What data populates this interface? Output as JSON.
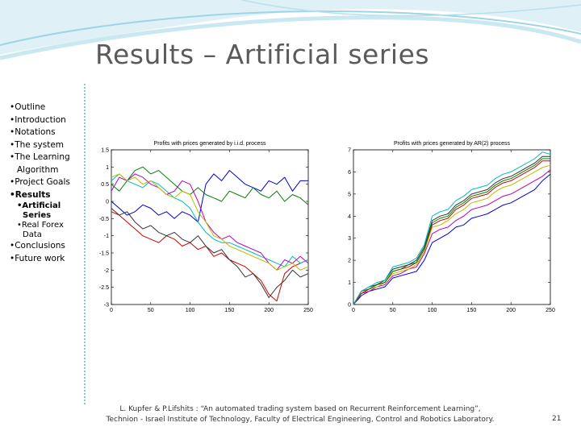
{
  "slide": {
    "title": "Results – Artificial series",
    "page_number": "21",
    "footer_line1": "L. Kupfer & P.Lifshits : “An automated trading system based on Recurrent Reinforcement Learning”,",
    "footer_line2": "Technion - Israel Institute of Technology, Faculty of Electrical Engineering, Control and Robotics Laboratory."
  },
  "sidebar": {
    "items": [
      {
        "label": "•Outline"
      },
      {
        "label": "•Introduction"
      },
      {
        "label": "•Notations"
      },
      {
        "label": "•The system"
      },
      {
        "label": "•The Learning",
        "cont": "Algorithm"
      },
      {
        "label": "•Project Goals"
      },
      {
        "label": "•Results",
        "bold": true
      },
      {
        "label": "•Artificial",
        "cont": "Series",
        "sub": true,
        "bold": true
      },
      {
        "label": "•Real Forex",
        "cont": "Data",
        "sub": true
      },
      {
        "label": "•Conclusions"
      },
      {
        "label": "•Future work"
      }
    ]
  },
  "colors": {
    "title": "#5a5a5a",
    "divider": "#7ec8dd",
    "series": [
      "#0000cc",
      "#008000",
      "#cc0000",
      "#00bbbb",
      "#bb00bb",
      "#bbbb00",
      "#333333"
    ]
  },
  "chart_data": [
    {
      "type": "line",
      "title": "Profits with prices generated by i.i.d. process",
      "xlim": [
        0,
        250
      ],
      "ylim": [
        -3,
        1.5
      ],
      "xticks": [
        0,
        50,
        100,
        150,
        200,
        250
      ],
      "yticks": [
        -3,
        -2.5,
        -2,
        -1.5,
        -1,
        -0.5,
        0,
        0.5,
        1,
        1.5
      ],
      "series": [
        {
          "color": "#0000cc",
          "x": [
            0,
            10,
            20,
            30,
            40,
            50,
            60,
            70,
            80,
            90,
            100,
            110,
            120,
            130,
            140,
            150,
            160,
            170,
            180,
            190,
            200,
            210,
            220,
            230,
            240,
            250
          ],
          "y": [
            0.0,
            -0.2,
            -0.4,
            -0.3,
            -0.1,
            -0.2,
            -0.4,
            -0.3,
            -0.5,
            -0.3,
            -0.4,
            -0.6,
            0.5,
            0.8,
            0.6,
            0.9,
            0.7,
            0.5,
            0.4,
            0.3,
            0.6,
            0.5,
            0.7,
            0.3,
            0.6,
            0.6
          ]
        },
        {
          "color": "#008000",
          "x": [
            0,
            10,
            20,
            30,
            40,
            50,
            60,
            70,
            80,
            90,
            100,
            110,
            120,
            130,
            140,
            150,
            160,
            170,
            180,
            190,
            200,
            210,
            220,
            230,
            240,
            250
          ],
          "y": [
            0.5,
            0.3,
            0.6,
            0.9,
            1.0,
            0.8,
            0.9,
            0.7,
            0.5,
            0.3,
            0.2,
            0.4,
            0.2,
            0.1,
            0.0,
            0.3,
            0.2,
            0.1,
            0.4,
            0.2,
            0.1,
            0.3,
            0.0,
            0.2,
            0.1,
            -0.1
          ]
        },
        {
          "color": "#cc0000",
          "x": [
            0,
            10,
            20,
            30,
            40,
            50,
            60,
            70,
            80,
            90,
            100,
            110,
            120,
            130,
            140,
            150,
            160,
            170,
            180,
            190,
            200,
            210,
            220,
            230,
            240,
            250
          ],
          "y": [
            -0.3,
            -0.4,
            -0.6,
            -0.8,
            -1.0,
            -1.1,
            -1.2,
            -1.0,
            -1.1,
            -1.3,
            -1.2,
            -1.4,
            -1.3,
            -1.6,
            -1.5,
            -1.7,
            -1.8,
            -1.9,
            -2.1,
            -2.3,
            -2.7,
            -2.9,
            -2.1,
            -1.9,
            -1.8,
            -1.7
          ]
        },
        {
          "color": "#00bbbb",
          "x": [
            0,
            10,
            20,
            30,
            40,
            50,
            60,
            70,
            80,
            90,
            100,
            110,
            120,
            130,
            140,
            150,
            160,
            170,
            180,
            190,
            200,
            210,
            220,
            230,
            240,
            250
          ],
          "y": [
            0.6,
            0.8,
            0.6,
            0.5,
            0.4,
            0.6,
            0.5,
            0.3,
            0.1,
            0.0,
            -0.2,
            -0.6,
            -0.9,
            -1.1,
            -1.2,
            -1.2,
            -1.3,
            -1.4,
            -1.5,
            -1.6,
            -1.7,
            -1.8,
            -1.9,
            -1.6,
            -1.8,
            -1.7
          ]
        },
        {
          "color": "#bb00bb",
          "x": [
            0,
            10,
            20,
            30,
            40,
            50,
            60,
            70,
            80,
            90,
            100,
            110,
            120,
            130,
            140,
            150,
            160,
            170,
            180,
            190,
            200,
            210,
            220,
            230,
            240,
            250
          ],
          "y": [
            0.3,
            0.7,
            0.6,
            0.8,
            0.7,
            0.5,
            0.4,
            0.2,
            0.3,
            0.6,
            0.5,
            0.0,
            -0.6,
            -0.9,
            -1.1,
            -1.0,
            -1.2,
            -1.3,
            -1.4,
            -1.5,
            -1.8,
            -2.0,
            -1.7,
            -1.8,
            -1.6,
            -1.8
          ]
        },
        {
          "color": "#bbbb00",
          "x": [
            0,
            10,
            20,
            30,
            40,
            50,
            60,
            70,
            80,
            90,
            100,
            110,
            120,
            130,
            140,
            150,
            160,
            170,
            180,
            190,
            200,
            210,
            220,
            230,
            240,
            250
          ],
          "y": [
            0.7,
            0.8,
            0.6,
            0.7,
            0.5,
            0.6,
            0.4,
            0.2,
            0.1,
            0.3,
            0.2,
            -0.3,
            -0.6,
            -1.0,
            -1.1,
            -1.3,
            -1.4,
            -1.5,
            -1.6,
            -1.7,
            -1.8,
            -2.0,
            -1.9,
            -1.8,
            -2.0,
            -1.9
          ]
        },
        {
          "color": "#333333",
          "x": [
            0,
            10,
            20,
            30,
            40,
            50,
            60,
            70,
            80,
            90,
            100,
            110,
            120,
            130,
            140,
            150,
            160,
            170,
            180,
            190,
            200,
            210,
            220,
            230,
            240,
            250
          ],
          "y": [
            -0.2,
            -0.4,
            -0.3,
            -0.6,
            -0.8,
            -0.7,
            -0.9,
            -1.0,
            -0.9,
            -1.1,
            -1.2,
            -1.0,
            -1.3,
            -1.5,
            -1.4,
            -1.7,
            -1.9,
            -2.2,
            -2.1,
            -2.4,
            -2.8,
            -2.5,
            -2.3,
            -2.0,
            -2.2,
            -2.1
          ]
        }
      ]
    },
    {
      "type": "line",
      "title": "Profits with prices generated by AR(2) process",
      "xlim": [
        0,
        250
      ],
      "ylim": [
        0,
        7
      ],
      "xticks": [
        0,
        50,
        100,
        150,
        200,
        250
      ],
      "yticks": [
        0,
        1,
        2,
        3,
        4,
        5,
        6,
        7
      ],
      "series": [
        {
          "color": "#0000cc",
          "x": [
            0,
            10,
            20,
            30,
            40,
            50,
            60,
            70,
            80,
            90,
            100,
            110,
            120,
            130,
            140,
            150,
            160,
            170,
            180,
            190,
            200,
            210,
            220,
            230,
            240,
            250
          ],
          "y": [
            0.0,
            0.4,
            0.6,
            0.7,
            0.8,
            1.2,
            1.3,
            1.4,
            1.5,
            2.0,
            2.8,
            3.0,
            3.2,
            3.5,
            3.6,
            3.9,
            4.0,
            4.1,
            4.3,
            4.5,
            4.6,
            4.8,
            5.0,
            5.2,
            5.6,
            5.9
          ]
        },
        {
          "color": "#bb00bb",
          "x": [
            0,
            10,
            20,
            30,
            40,
            50,
            60,
            70,
            80,
            90,
            100,
            110,
            120,
            130,
            140,
            150,
            160,
            170,
            180,
            190,
            200,
            210,
            220,
            230,
            240,
            250
          ],
          "y": [
            0.0,
            0.5,
            0.6,
            0.8,
            0.9,
            1.3,
            1.4,
            1.6,
            1.7,
            2.3,
            3.2,
            3.4,
            3.5,
            3.8,
            4.0,
            4.3,
            4.4,
            4.5,
            4.7,
            4.9,
            5.0,
            5.2,
            5.4,
            5.6,
            5.8,
            6.1
          ]
        },
        {
          "color": "#bbbb00",
          "x": [
            0,
            10,
            20,
            30,
            40,
            50,
            60,
            70,
            80,
            90,
            100,
            110,
            120,
            130,
            140,
            150,
            160,
            170,
            180,
            190,
            200,
            210,
            220,
            230,
            240,
            250
          ],
          "y": [
            0.0,
            0.5,
            0.7,
            0.8,
            1.0,
            1.4,
            1.5,
            1.6,
            1.8,
            2.4,
            3.5,
            3.6,
            3.8,
            4.1,
            4.3,
            4.6,
            4.7,
            4.8,
            5.1,
            5.3,
            5.4,
            5.6,
            5.8,
            6.0,
            6.2,
            6.3
          ]
        },
        {
          "color": "#cc0000",
          "x": [
            0,
            10,
            20,
            30,
            40,
            50,
            60,
            70,
            80,
            90,
            100,
            110,
            120,
            130,
            140,
            150,
            160,
            170,
            180,
            190,
            200,
            210,
            220,
            230,
            240,
            250
          ],
          "y": [
            0.0,
            0.5,
            0.7,
            0.9,
            1.0,
            1.5,
            1.6,
            1.7,
            1.9,
            2.5,
            3.6,
            3.8,
            3.9,
            4.3,
            4.5,
            4.8,
            4.9,
            5.0,
            5.3,
            5.5,
            5.6,
            5.8,
            6.0,
            6.2,
            6.5,
            6.5
          ]
        },
        {
          "color": "#008000",
          "x": [
            0,
            10,
            20,
            30,
            40,
            50,
            60,
            70,
            80,
            90,
            100,
            110,
            120,
            130,
            140,
            150,
            160,
            170,
            180,
            190,
            200,
            210,
            220,
            230,
            240,
            250
          ],
          "y": [
            0.0,
            0.6,
            0.7,
            0.9,
            1.0,
            1.5,
            1.6,
            1.8,
            1.9,
            2.5,
            3.7,
            3.9,
            4.0,
            4.4,
            4.6,
            4.9,
            5.0,
            5.1,
            5.4,
            5.6,
            5.7,
            5.9,
            6.1,
            6.3,
            6.6,
            6.6
          ]
        },
        {
          "color": "#333333",
          "x": [
            0,
            10,
            20,
            30,
            40,
            50,
            60,
            70,
            80,
            90,
            100,
            110,
            120,
            130,
            140,
            150,
            160,
            170,
            180,
            190,
            200,
            210,
            220,
            230,
            240,
            250
          ],
          "y": [
            0.0,
            0.6,
            0.8,
            0.9,
            1.1,
            1.6,
            1.7,
            1.8,
            2.0,
            2.6,
            3.8,
            4.0,
            4.1,
            4.5,
            4.7,
            5.0,
            5.1,
            5.2,
            5.5,
            5.7,
            5.8,
            6.0,
            6.2,
            6.4,
            6.7,
            6.7
          ]
        },
        {
          "color": "#00bbbb",
          "x": [
            0,
            10,
            20,
            30,
            40,
            50,
            60,
            70,
            80,
            90,
            100,
            110,
            120,
            130,
            140,
            150,
            160,
            170,
            180,
            190,
            200,
            210,
            220,
            230,
            240,
            250
          ],
          "y": [
            0.0,
            0.6,
            0.8,
            1.0,
            1.1,
            1.7,
            1.8,
            1.9,
            2.1,
            2.7,
            4.0,
            4.2,
            4.3,
            4.7,
            4.9,
            5.2,
            5.3,
            5.4,
            5.7,
            5.9,
            6.0,
            6.2,
            6.4,
            6.6,
            6.9,
            6.8
          ]
        }
      ]
    }
  ]
}
